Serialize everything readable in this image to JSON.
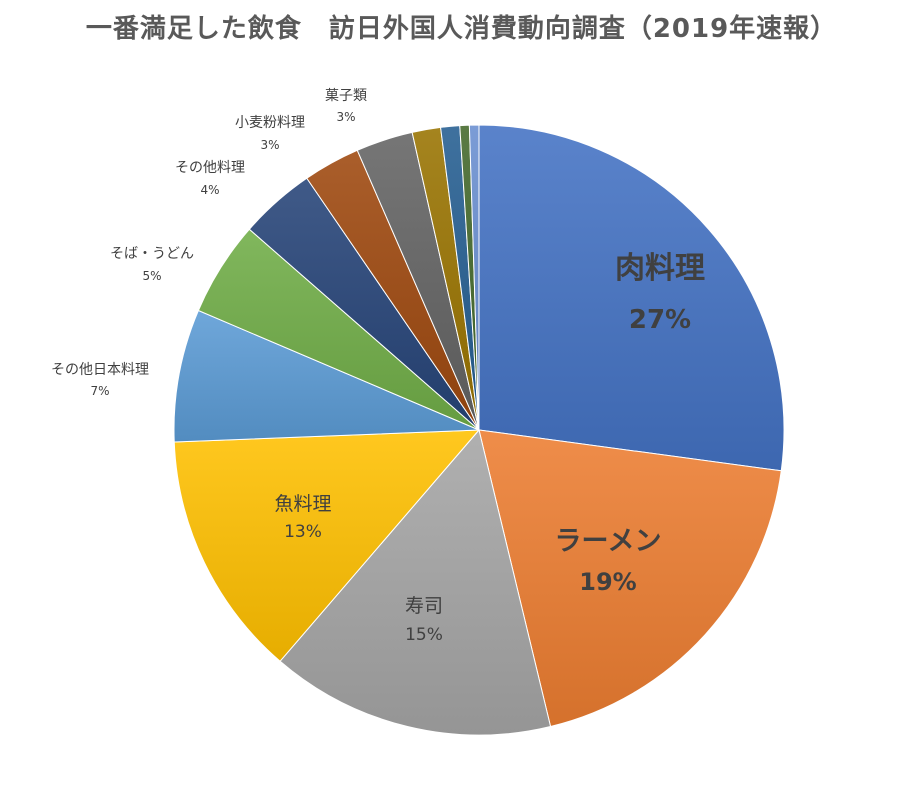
{
  "chart_data": {
    "type": "pie",
    "title": "一番満足した飲食　訪日外国人消費動向調査（2019年速報）",
    "unit": "%",
    "slices": [
      {
        "label": "肉料理",
        "value": 27,
        "value_text": "27%",
        "color": "#4472C4"
      },
      {
        "label": "ラーメン",
        "value": 19,
        "value_text": "19%",
        "color": "#ED7D31"
      },
      {
        "label": "寿司",
        "value": 15,
        "value_text": "15%",
        "color": "#A5A5A5"
      },
      {
        "label": "魚料理",
        "value": 13,
        "value_text": "13%",
        "color": "#FFC000"
      },
      {
        "label": "その他日本料理",
        "value": 7,
        "value_text": "7%",
        "color": "#5B9BD5"
      },
      {
        "label": "そば・うどん",
        "value": 5,
        "value_text": "5%",
        "color": "#70AD47"
      },
      {
        "label": "その他料理",
        "value": 4,
        "value_text": "4%",
        "color": "#264478"
      },
      {
        "label": "小麦粉料理",
        "value": 3,
        "value_text": "3%",
        "color": "#9E480E"
      },
      {
        "label": "菓子類",
        "value": 3,
        "value_text": "3%",
        "color": "#636363"
      },
      {
        "label": "",
        "value": 1.5,
        "value_text": "",
        "color": "#997300"
      },
      {
        "label": "",
        "value": 1.0,
        "value_text": "",
        "color": "#255E91"
      },
      {
        "label": "",
        "value": 0.5,
        "value_text": "",
        "color": "#43682B"
      },
      {
        "label": "",
        "value": 0.5,
        "value_text": "",
        "color": "#698ED0"
      }
    ]
  }
}
